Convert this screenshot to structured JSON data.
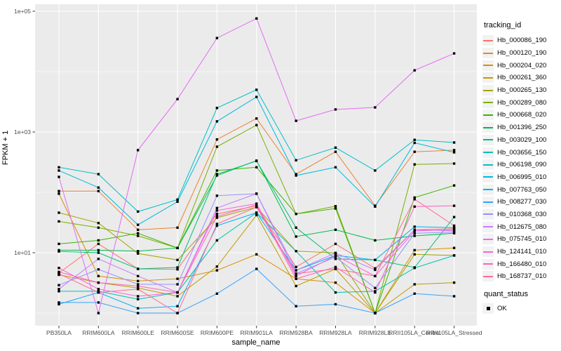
{
  "figure": {
    "panel_bg": "#EBEBEB",
    "grid_color": "#FFFFFF",
    "point_color": "#000000",
    "tick_label_color": "#4D4D4D",
    "axis_title_color": "#000000"
  },
  "chart_data": {
    "type": "line",
    "xlabel": "sample_name",
    "ylabel": "FPKM + 1",
    "y_scale": "log10",
    "ylim": [
      0.9,
      110000
    ],
    "grid": true,
    "legend_position": "right",
    "point_shape": "filled-square",
    "y_ticks": [
      {
        "label": "1e+01",
        "value": 10
      },
      {
        "label": "1e+03",
        "value": 1000
      },
      {
        "label": "1e+05",
        "value": 100000
      }
    ],
    "y_minor_values": [
      1,
      100,
      10000
    ],
    "categories": [
      "PB350LA",
      "RRIM600LA",
      "RRIM600LE",
      "RRIM600SE",
      "RRIM600PE",
      "RRIM901LA",
      "RRIM928BA",
      "RRIM928LA",
      "RRIM928LE",
      "RRII105LA_Control",
      "RRII105LA_Stressed"
    ],
    "legend_title": "tracking_id",
    "legend2_title": "quant_status",
    "legend2_items": [
      {
        "label": "OK",
        "marker": "black-square"
      }
    ],
    "series": [
      {
        "name": "Hb_000086_190",
        "color": "#F8766D",
        "values": [
          4.6,
          14,
          5.4,
          5.3,
          44,
          60,
          5.8,
          14,
          5.5,
          24,
          25
        ]
      },
      {
        "name": "Hb_000120_190",
        "color": "#EA8331",
        "values": [
          105,
          105,
          24,
          26,
          750,
          1670,
          200,
          470,
          60,
          470,
          500
        ]
      },
      {
        "name": "Hb_000204_020",
        "color": "#D89000",
        "values": [
          95,
          4.1,
          3.4,
          3.7,
          5.1,
          9.4,
          3.7,
          3.2,
          1.0,
          11,
          12
        ]
      },
      {
        "name": "Hb_000261_360",
        "color": "#C09B00",
        "values": [
          4.3,
          3.2,
          2.6,
          1.9,
          5.9,
          42,
          2.8,
          5.4,
          1.0,
          3.0,
          3.2
        ]
      },
      {
        "name": "Hb_000265_130",
        "color": "#A3A500",
        "values": [
          46,
          31,
          9.7,
          7.6,
          38,
          57,
          10.6,
          9.9,
          1.0,
          9.4,
          9.0
        ]
      },
      {
        "name": "Hb_000289_080",
        "color": "#7CAE00",
        "values": [
          33,
          26,
          19,
          12,
          570,
          1300,
          44,
          59,
          1.0,
          290,
          300
        ]
      },
      {
        "name": "Hb_000668_020",
        "color": "#39B600",
        "values": [
          14,
          16,
          21,
          12,
          230,
          260,
          44,
          54,
          1.0,
          82,
          130
        ]
      },
      {
        "name": "Hb_001396_250",
        "color": "#00BB4E",
        "values": [
          11,
          11,
          10.6,
          12,
          190,
          335,
          18.5,
          24,
          16,
          19,
          21
        ]
      },
      {
        "name": "Hb_003029_100",
        "color": "#00BF7D",
        "values": [
          10.5,
          10,
          5.4,
          5.7,
          200,
          330,
          26,
          7.9,
          7.6,
          5.7,
          39
        ]
      },
      {
        "name": "Hb_003656_150",
        "color": "#00C0AF",
        "values": [
          2.3,
          2.3,
          1.7,
          2.2,
          16,
          46,
          10.6,
          2.2,
          2.3,
          5.6,
          9.0
        ]
      },
      {
        "name": "Hb_006198_090",
        "color": "#00BFC4",
        "values": [
          260,
          200,
          48,
          76,
          2500,
          5000,
          340,
          550,
          230,
          740,
          670
        ]
      },
      {
        "name": "Hb_006995_010",
        "color": "#00BAE0",
        "values": [
          230,
          120,
          29,
          70,
          1500,
          3800,
          190,
          260,
          58,
          660,
          460
        ]
      },
      {
        "name": "Hb_007763_050",
        "color": "#00B0F6",
        "values": [
          1.4,
          2.2,
          1.2,
          1.3,
          28,
          46,
          5.1,
          9.0,
          7.6,
          27,
          26
        ]
      },
      {
        "name": "Hb_008277_030",
        "color": "#35A2FF",
        "values": [
          1.5,
          1.5,
          1.0,
          1.0,
          2.1,
          5.4,
          1.3,
          1.4,
          1.0,
          2.1,
          1.9
        ]
      },
      {
        "name": "Hb_010368_030",
        "color": "#9590FF",
        "values": [
          2.9,
          5.3,
          3.0,
          3.0,
          88,
          95,
          4.5,
          8.5,
          2.6,
          21,
          22
        ]
      },
      {
        "name": "Hb_012675_080",
        "color": "#C77CFF",
        "values": [
          2.5,
          7.9,
          4.1,
          2.2,
          55,
          95,
          5.1,
          9.9,
          5.2,
          24,
          23
        ]
      },
      {
        "name": "Hb_075745_010",
        "color": "#E76BF3",
        "values": [
          180,
          1.0,
          500,
          3500,
          36000,
          76000,
          1530,
          2360,
          2550,
          10500,
          20000
        ]
      },
      {
        "name": "Hb_124141_010",
        "color": "#FA62DB",
        "values": [
          5.6,
          2.5,
          1.9,
          2.2,
          50,
          65,
          4.1,
          9.0,
          4.1,
          23,
          24
        ]
      },
      {
        "name": "Hb_166480_010",
        "color": "#FF62BC",
        "values": [
          4.8,
          3.2,
          2.8,
          2.2,
          40,
          62,
          3.7,
          5.8,
          2.2,
          58,
          60
        ]
      },
      {
        "name": "Hb_168737_010",
        "color": "#FF6A98",
        "values": [
          4.5,
          2.2,
          2.5,
          1.0,
          30,
          57,
          4.5,
          5.4,
          4.1,
          77,
          28
        ]
      }
    ]
  }
}
